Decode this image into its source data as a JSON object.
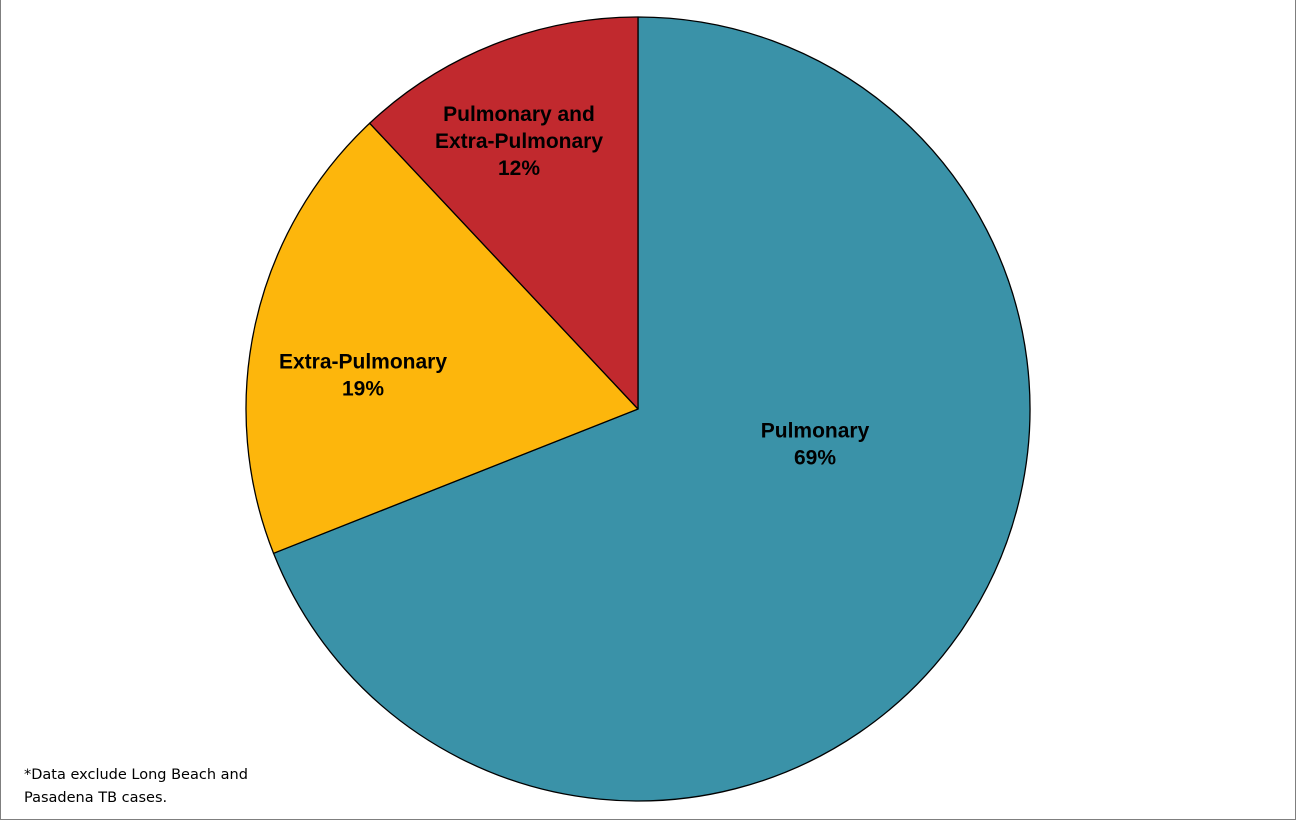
{
  "chart_data": {
    "type": "pie",
    "title": "",
    "start_angle_deg": 0,
    "direction": "clockwise",
    "slices": [
      {
        "name": "Pulmonary",
        "value": 69,
        "value_label": "69%",
        "label_lines": [
          "Pulmonary"
        ],
        "color": "#3A92A8"
      },
      {
        "name": "Extra-Pulmonary",
        "value": 19,
        "value_label": "19%",
        "label_lines": [
          "Extra-Pulmonary"
        ],
        "color": "#FDB60C"
      },
      {
        "name": "Pulmonary and Extra-Pulmonary",
        "value": 12,
        "value_label": "12%",
        "label_lines": [
          "Pulmonary and",
          "Extra-Pulmonary"
        ],
        "color": "#C1292E"
      }
    ],
    "slice_border_color": "#000000",
    "legend": "none"
  },
  "footnote": {
    "lines": [
      "*Data exclude Long Beach and",
      "Pasadena TB cases."
    ]
  }
}
